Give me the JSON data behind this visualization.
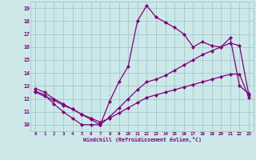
{
  "xlabel": "Windchill (Refroidissement éolien,°C)",
  "bg_color": "#cce8e8",
  "line_color": "#800080",
  "xlim": [
    -0.5,
    23.5
  ],
  "ylim": [
    9.5,
    19.5
  ],
  "xticks": [
    0,
    1,
    2,
    3,
    4,
    5,
    6,
    7,
    8,
    9,
    10,
    11,
    12,
    13,
    14,
    15,
    16,
    17,
    18,
    19,
    20,
    21,
    22,
    23
  ],
  "yticks": [
    10,
    11,
    12,
    13,
    14,
    15,
    16,
    17,
    18,
    19
  ],
  "series1_x": [
    0,
    1,
    2,
    3,
    4,
    5,
    6,
    7,
    8,
    9,
    10,
    11,
    12,
    13,
    14,
    15,
    16,
    17,
    18,
    19,
    20,
    21,
    22,
    23
  ],
  "series1_y": [
    12.6,
    12.3,
    11.6,
    11.0,
    10.5,
    10.0,
    10.0,
    10.0,
    11.8,
    13.3,
    14.5,
    18.0,
    19.2,
    18.3,
    17.9,
    17.5,
    17.0,
    16.0,
    16.4,
    16.1,
    16.0,
    16.7,
    13.0,
    12.4
  ],
  "series2_x": [
    0,
    1,
    2,
    3,
    4,
    5,
    6,
    7,
    8,
    9,
    10,
    11,
    12,
    13,
    14,
    15,
    16,
    17,
    18,
    19,
    20,
    21,
    22,
    23
  ],
  "series2_y": [
    12.8,
    12.5,
    12.0,
    11.6,
    11.2,
    10.8,
    10.4,
    10.0,
    10.6,
    11.3,
    12.0,
    12.7,
    13.3,
    13.5,
    13.8,
    14.2,
    14.6,
    15.0,
    15.4,
    15.7,
    16.0,
    16.3,
    16.1,
    12.3
  ],
  "series3_x": [
    0,
    1,
    2,
    3,
    4,
    5,
    6,
    7,
    8,
    9,
    10,
    11,
    12,
    13,
    14,
    15,
    16,
    17,
    18,
    19,
    20,
    21,
    22,
    23
  ],
  "series3_y": [
    12.5,
    12.2,
    11.9,
    11.5,
    11.2,
    10.8,
    10.5,
    10.2,
    10.5,
    10.9,
    11.3,
    11.7,
    12.1,
    12.3,
    12.5,
    12.7,
    12.9,
    13.1,
    13.3,
    13.5,
    13.7,
    13.9,
    13.9,
    12.1
  ]
}
